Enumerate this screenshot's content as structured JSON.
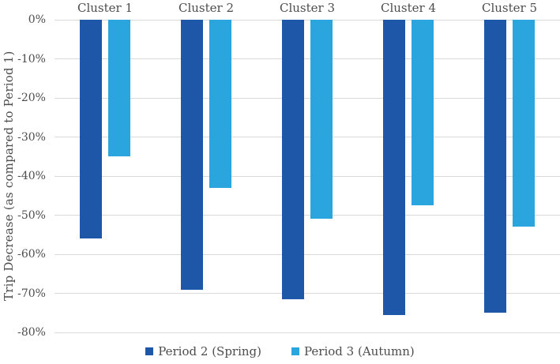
{
  "chart_data": {
    "type": "bar",
    "title": "",
    "xlabel": "",
    "ylabel": "Trip Decrease (as compared to Period 1)",
    "categories": [
      "Cluster 1",
      "Cluster 2",
      "Cluster 3",
      "Cluster 4",
      "Cluster 5"
    ],
    "series": [
      {
        "name": "Period 2 (Spring)",
        "color": "#1E57A8",
        "values": [
          -56,
          -69,
          -71.5,
          -75.5,
          -75
        ]
      },
      {
        "name": "Period 3 (Autumn)",
        "color": "#2BA5DE",
        "values": [
          -35,
          -43,
          -51,
          -47.5,
          -53
        ]
      }
    ],
    "ylim": [
      -80,
      0
    ],
    "ytick_step": -10,
    "ytick_labels": [
      "0%",
      "-10%",
      "-20%",
      "-30%",
      "-40%",
      "-50%",
      "-60%",
      "-70%",
      "-80%"
    ],
    "grid": true,
    "gridline_color": "#d9d9d9",
    "text_color": "#4d4d4d",
    "background_color": "#ffffff",
    "legend_position": "bottom"
  }
}
